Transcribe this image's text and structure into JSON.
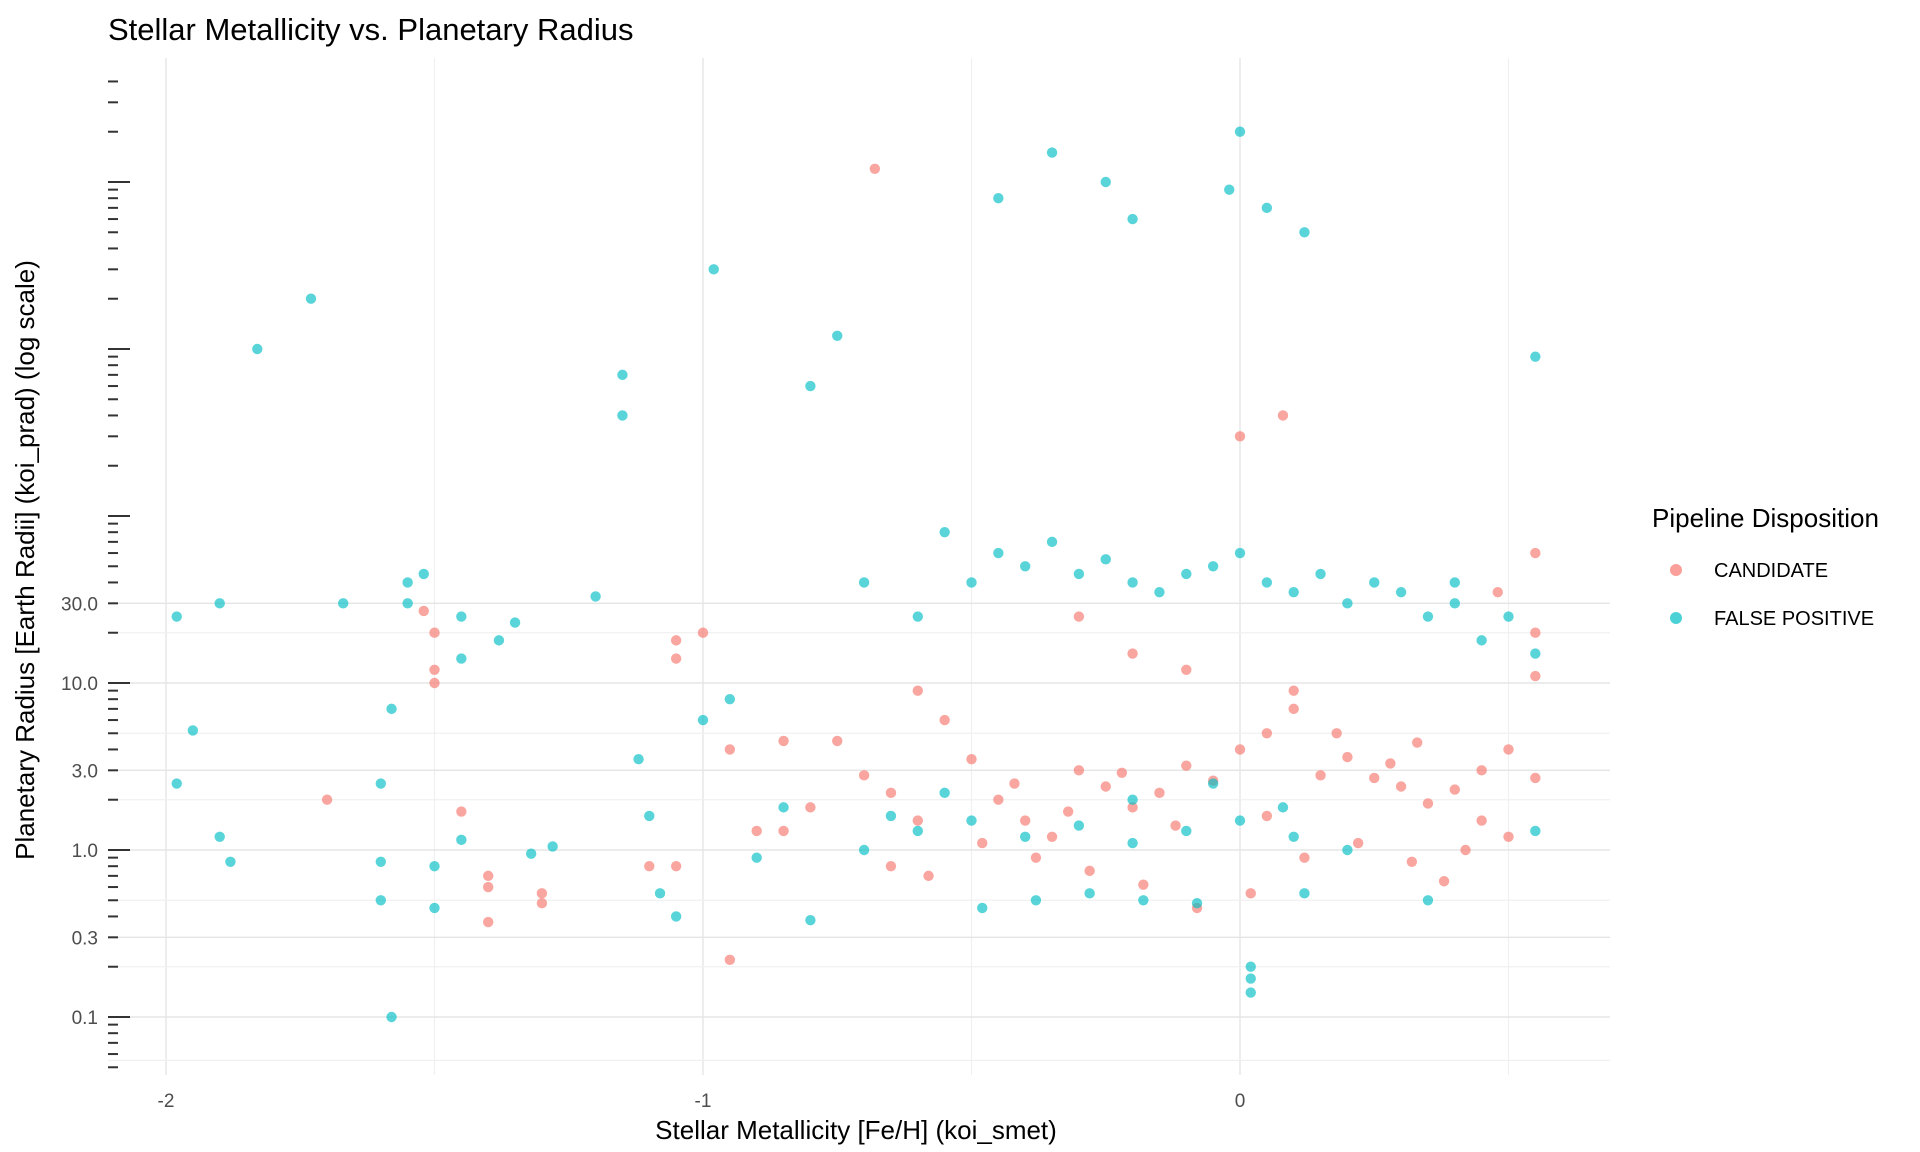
{
  "chart_data": {
    "type": "scatter",
    "title": "Stellar Metallicity vs. Planetary Radius",
    "xlabel": "Stellar Metallicity [Fe/H] (koi_smet)",
    "ylabel": "Planetary Radius [Earth Radii] (koi_prad) (log scale)",
    "x_scale": "linear",
    "y_scale": "log",
    "xlim": [
      -2.1,
      0.69
    ],
    "ylim": [
      0.05,
      80000
    ],
    "x_ticks": [
      -2,
      -1,
      0
    ],
    "x_tick_labels": [
      "-2",
      "-1",
      "0"
    ],
    "y_ticks": [
      0.1,
      0.3,
      1.0,
      3.0,
      10.0,
      30.0
    ],
    "y_tick_labels": [
      "0.1",
      "0.3",
      "1.0",
      "3.0",
      "10.0",
      "30.0"
    ],
    "grid": true,
    "legend": {
      "title": "Pipeline Disposition",
      "position": "right"
    },
    "series": [
      {
        "name": "CANDIDATE",
        "color": "#F8766D",
        "points": [
          [
            -1.5,
            20
          ],
          [
            -1.5,
            12
          ],
          [
            -1.5,
            10
          ],
          [
            -1.52,
            27
          ],
          [
            -1.7,
            2.0
          ],
          [
            -1.45,
            1.7
          ],
          [
            -1.4,
            0.7
          ],
          [
            -1.4,
            0.6
          ],
          [
            -1.3,
            0.55
          ],
          [
            -1.3,
            0.48
          ],
          [
            -1.4,
            0.37
          ],
          [
            -1.1,
            0.8
          ],
          [
            -1.05,
            0.8
          ],
          [
            -1.05,
            14
          ],
          [
            -1.05,
            18
          ],
          [
            -1.0,
            20
          ],
          [
            -0.95,
            0.22
          ],
          [
            -0.95,
            4
          ],
          [
            -0.9,
            1.3
          ],
          [
            -0.85,
            1.3
          ],
          [
            -0.85,
            4.5
          ],
          [
            -0.8,
            1.8
          ],
          [
            -0.75,
            4.5
          ],
          [
            -0.7,
            2.8
          ],
          [
            -0.65,
            2.2
          ],
          [
            -0.68,
            12000
          ],
          [
            -0.6,
            9
          ],
          [
            -0.6,
            1.5
          ],
          [
            -0.65,
            0.8
          ],
          [
            -0.55,
            6
          ],
          [
            -0.5,
            3.5
          ],
          [
            -0.45,
            2.0
          ],
          [
            -0.4,
            1.5
          ],
          [
            -0.35,
            1.2
          ],
          [
            -0.3,
            3.0
          ],
          [
            -0.25,
            2.4
          ],
          [
            -0.2,
            1.8
          ],
          [
            -0.15,
            2.2
          ],
          [
            -0.1,
            3.2
          ],
          [
            -0.05,
            2.6
          ],
          [
            0.0,
            4.0
          ],
          [
            0.05,
            5.0
          ],
          [
            0.1,
            7.0
          ],
          [
            0.15,
            2.8
          ],
          [
            0.2,
            3.6
          ],
          [
            0.25,
            2.7
          ],
          [
            0.3,
            2.4
          ],
          [
            0.35,
            1.9
          ],
          [
            0.4,
            2.3
          ],
          [
            0.45,
            3.0
          ],
          [
            0.5,
            4.0
          ],
          [
            0.55,
            2.7
          ],
          [
            0.55,
            11
          ],
          [
            0.55,
            20
          ],
          [
            0.55,
            60
          ],
          [
            0.48,
            35
          ],
          [
            0.42,
            1.0
          ],
          [
            0.38,
            0.65
          ],
          [
            0.32,
            0.85
          ],
          [
            0.22,
            1.1
          ],
          [
            0.12,
            0.9
          ],
          [
            0.02,
            0.55
          ],
          [
            -0.08,
            0.45
          ],
          [
            -0.18,
            0.62
          ],
          [
            -0.28,
            0.75
          ],
          [
            -0.38,
            0.9
          ],
          [
            -0.48,
            1.1
          ],
          [
            -0.58,
            0.7
          ],
          [
            -0.3,
            25
          ],
          [
            -0.2,
            15
          ],
          [
            -0.1,
            12
          ],
          [
            0.0,
            300
          ],
          [
            0.08,
            400
          ],
          [
            0.1,
            9
          ],
          [
            0.18,
            5
          ],
          [
            0.28,
            3.3
          ],
          [
            0.33,
            4.4
          ],
          [
            0.05,
            1.6
          ],
          [
            -0.12,
            1.4
          ],
          [
            -0.22,
            2.9
          ],
          [
            -0.32,
            1.7
          ],
          [
            -0.42,
            2.5
          ],
          [
            0.45,
            1.5
          ],
          [
            0.5,
            1.2
          ]
        ]
      },
      {
        "name": "FALSE POSITIVE",
        "color": "#00BFC4",
        "points": [
          [
            -1.98,
            25
          ],
          [
            -1.95,
            5.2
          ],
          [
            -1.9,
            1.2
          ],
          [
            -1.88,
            0.85
          ],
          [
            -1.98,
            2.5
          ],
          [
            -1.9,
            30
          ],
          [
            -1.83,
            1000
          ],
          [
            -1.73,
            2000
          ],
          [
            -1.67,
            30
          ],
          [
            -1.6,
            0.85
          ],
          [
            -1.6,
            2.5
          ],
          [
            -1.58,
            7
          ],
          [
            -1.58,
            0.1
          ],
          [
            -1.6,
            0.5
          ],
          [
            -1.55,
            30
          ],
          [
            -1.55,
            40
          ],
          [
            -1.52,
            45
          ],
          [
            -1.5,
            0.8
          ],
          [
            -1.5,
            0.45
          ],
          [
            -1.45,
            1.15
          ],
          [
            -1.45,
            14
          ],
          [
            -1.45,
            25
          ],
          [
            -1.38,
            18
          ],
          [
            -1.35,
            23
          ],
          [
            -1.32,
            0.95
          ],
          [
            -1.28,
            1.05
          ],
          [
            -1.2,
            33
          ],
          [
            -1.15,
            700
          ],
          [
            -1.15,
            400
          ],
          [
            -1.12,
            3.5
          ],
          [
            -1.1,
            1.6
          ],
          [
            -1.08,
            0.55
          ],
          [
            -1.05,
            0.4
          ],
          [
            -1.0,
            6
          ],
          [
            -0.98,
            3000
          ],
          [
            -0.95,
            8
          ],
          [
            -0.9,
            0.9
          ],
          [
            -0.85,
            1.8
          ],
          [
            -0.8,
            0.38
          ],
          [
            -0.8,
            600
          ],
          [
            -0.75,
            1200
          ],
          [
            -0.7,
            40
          ],
          [
            -0.6,
            25
          ],
          [
            -0.55,
            80
          ],
          [
            -0.5,
            40
          ],
          [
            -0.45,
            60
          ],
          [
            -0.4,
            50
          ],
          [
            -0.35,
            70
          ],
          [
            -0.3,
            45
          ],
          [
            -0.25,
            55
          ],
          [
            -0.2,
            40
          ],
          [
            -0.15,
            35
          ],
          [
            -0.1,
            45
          ],
          [
            -0.05,
            50
          ],
          [
            0.0,
            60
          ],
          [
            0.05,
            40
          ],
          [
            0.1,
            35
          ],
          [
            0.15,
            45
          ],
          [
            0.2,
            30
          ],
          [
            0.25,
            40
          ],
          [
            0.3,
            35
          ],
          [
            0.35,
            25
          ],
          [
            0.4,
            30
          ],
          [
            0.45,
            18
          ],
          [
            0.5,
            25
          ],
          [
            0.55,
            15
          ],
          [
            0.55,
            1.3
          ],
          [
            0.55,
            900
          ],
          [
            0.4,
            40
          ],
          [
            0.35,
            0.5
          ],
          [
            -0.35,
            15000
          ],
          [
            -0.45,
            8000
          ],
          [
            -0.25,
            10000
          ],
          [
            -0.2,
            6000
          ],
          [
            0.0,
            20000
          ],
          [
            -0.02,
            9000
          ],
          [
            0.05,
            7000
          ],
          [
            0.12,
            5000
          ],
          [
            -0.48,
            0.45
          ],
          [
            -0.38,
            0.5
          ],
          [
            -0.28,
            0.55
          ],
          [
            -0.18,
            0.5
          ],
          [
            -0.08,
            0.48
          ],
          [
            0.02,
            0.2
          ],
          [
            0.02,
            0.17
          ],
          [
            0.02,
            0.14
          ],
          [
            0.12,
            0.55
          ],
          [
            -0.5,
            1.5
          ],
          [
            -0.4,
            1.2
          ],
          [
            -0.3,
            1.4
          ],
          [
            -0.2,
            1.1
          ],
          [
            -0.1,
            1.3
          ],
          [
            0.0,
            1.5
          ],
          [
            0.1,
            1.2
          ],
          [
            0.2,
            1.0
          ],
          [
            -0.2,
            2.0
          ],
          [
            -0.05,
            2.5
          ],
          [
            0.08,
            1.8
          ],
          [
            -0.65,
            1.6
          ],
          [
            -0.7,
            1.0
          ],
          [
            -0.6,
            1.3
          ],
          [
            -0.55,
            2.2
          ]
        ]
      }
    ]
  }
}
